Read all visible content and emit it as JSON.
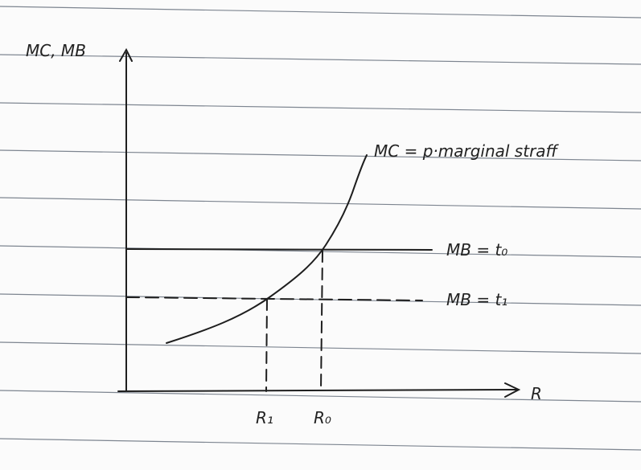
{
  "axes": {
    "y_label": "MC, MB",
    "x_label": "R"
  },
  "curves": {
    "mc_label": "MC = p·marginal straff",
    "mb0_label": "MB = t₀",
    "mb1_label": "MB = t₁"
  },
  "x_markers": {
    "r1_label": "R₁",
    "r0_label": "R₀"
  }
}
